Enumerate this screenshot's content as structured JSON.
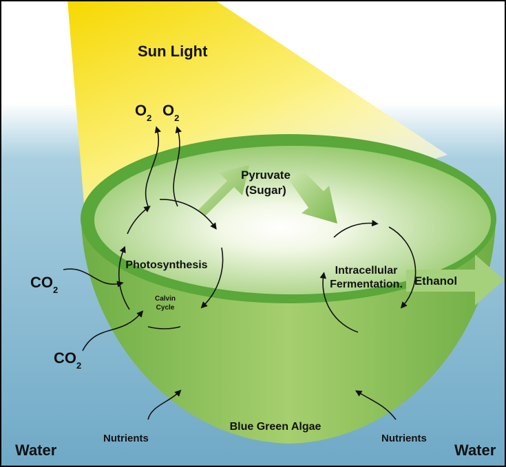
{
  "title": "Sun Light",
  "products": [
    {
      "base": "O",
      "sub": "2"
    },
    {
      "base": "O",
      "sub": "2"
    }
  ],
  "inputs": [
    {
      "base": "CO",
      "sub": "2"
    },
    {
      "base": "CO",
      "sub": "2"
    }
  ],
  "pyruvate": {
    "line1": "Pyruvate",
    "line2": "(Sugar)"
  },
  "photosynthesis": {
    "label": "Photosynthesis",
    "cycle_line1": "Calvin",
    "cycle_line2": "Cycle"
  },
  "fermentation": {
    "line1": "Intracellular",
    "line2": "Fermentation."
  },
  "output": "Ethanol",
  "organism": "Blue Green Algae",
  "nutrients": [
    "Nutrients",
    "Nutrients"
  ],
  "water": [
    "Water",
    "Water"
  ]
}
